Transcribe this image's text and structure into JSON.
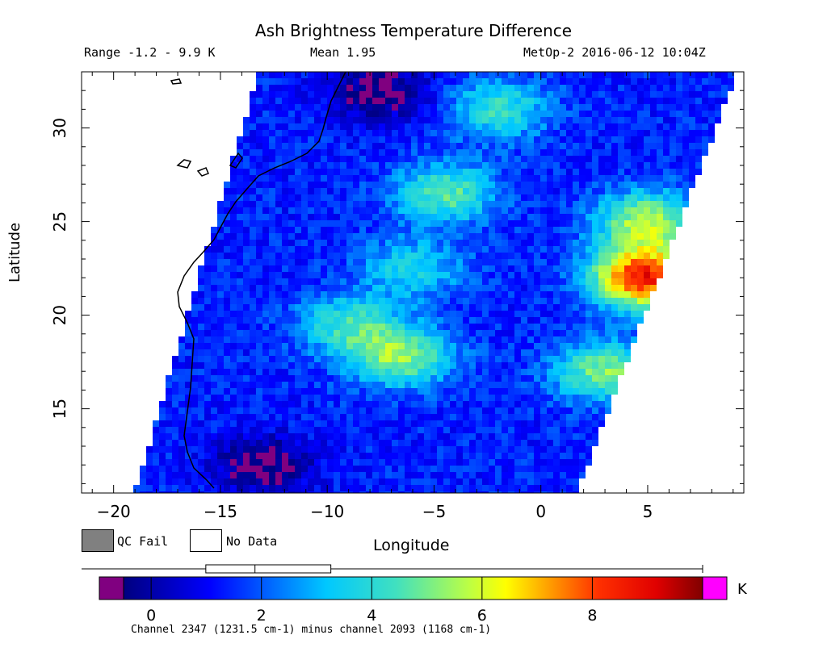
{
  "header": {
    "title": "Ash Brightness Temperature Difference",
    "range": "Range -1.2 - 9.9 K",
    "mean": "Mean 1.95",
    "satellite": "MetOp-2 2016-06-12 10:04Z"
  },
  "legend": {
    "qc_fail": "QC Fail",
    "no_data": "No Data",
    "qc_fail_color": "#808080",
    "no_data_color": "#ffffff"
  },
  "colorbar": {
    "unit": "K",
    "ticks": [
      "0",
      "2",
      "4",
      "6",
      "8"
    ],
    "tick_values": [
      0,
      2,
      4,
      6,
      8
    ],
    "min": -0.5,
    "max": 10,
    "under_color": "#800080",
    "over_color": "#ff00ff",
    "footnote": "Channel 2347 (1231.5 cm-1) minus channel 2093 (1168 cm-1)",
    "boxplot": {
      "min": -0.5,
      "q1": 1.05,
      "median": 2.0,
      "q3": 3.2,
      "max": 9.9
    }
  },
  "chart_data": {
    "type": "heatmap",
    "title": "Ash Brightness Temperature Difference",
    "xlabel": "Longitude",
    "ylabel": "Latitude",
    "xlim": [
      -21.5,
      9.5
    ],
    "ylim": [
      10.5,
      33
    ],
    "x_ticks": [
      "-20",
      "-15",
      "-10",
      "-5",
      "0",
      "5"
    ],
    "x_tick_values": [
      -20,
      -15,
      -10,
      -5,
      0,
      5
    ],
    "y_ticks": [
      "15",
      "20",
      "25",
      "30"
    ],
    "y_tick_values": [
      15,
      20,
      25,
      30
    ],
    "value_unit": "K",
    "value_range": [
      -1.2,
      9.9
    ],
    "mean": 1.95,
    "swath": {
      "west_lon_at_lat_min": -19.0,
      "west_lon_at_lat_max": -13.2,
      "east_lon_at_lat_min": 1.7,
      "east_lon_at_lat_max": 9.2
    },
    "features": [
      {
        "lon": -4.5,
        "lat": 26.5,
        "value": 4.5
      },
      {
        "lon": -6.0,
        "lat": 22.5,
        "value": 3.5
      },
      {
        "lon": -9.0,
        "lat": 19.5,
        "value": 4.0
      },
      {
        "lon": -6.5,
        "lat": 17.8,
        "value": 5.0
      },
      {
        "lon": -2.0,
        "lat": 31.0,
        "value": 4.0
      },
      {
        "lon": 4.8,
        "lat": 22.0,
        "value": 8.5
      },
      {
        "lon": 5.0,
        "lat": 25.0,
        "value": 5.5
      },
      {
        "lon": 3.0,
        "lat": 17.0,
        "value": 5.0
      },
      {
        "lon": -13.0,
        "lat": 12.0,
        "value": -0.8
      },
      {
        "lon": -7.5,
        "lat": 32.0,
        "value": -0.8
      }
    ]
  }
}
